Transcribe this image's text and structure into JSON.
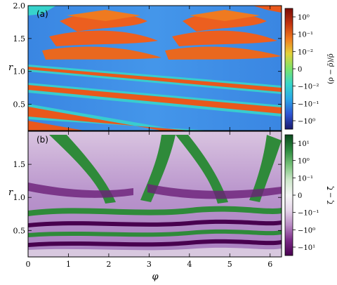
{
  "chart_data": [
    {
      "type": "heatmap",
      "panel_label": "(a)",
      "xlabel": "",
      "ylabel": "r",
      "xlim": [
        0,
        6.283
      ],
      "ylim": [
        0.1,
        2.0
      ],
      "xticks": [
        "0",
        "1",
        "2",
        "3",
        "4",
        "5",
        "6"
      ],
      "yticks": [
        "0.5",
        "1.0",
        "1.5",
        "2.0"
      ],
      "ytick_values": [
        0.5,
        1.0,
        1.5,
        2.0
      ],
      "colorbar": {
        "label": "(ρ − ρ̄)/ρ̄",
        "scale": "symlog",
        "tick_labels": [
          "10⁰",
          "10⁻¹",
          "10⁻²",
          "0",
          "−10⁻²",
          "−10⁻¹",
          "−10⁰"
        ],
        "colormap": [
          "#1a1a6e",
          "#2f55d4",
          "#2aa8e8",
          "#37d6c9",
          "#7be36a",
          "#e2d23a",
          "#f07a1f",
          "#c23410",
          "#7a0c08"
        ]
      },
      "background_color": "#3f8ee6",
      "feature_color": "#ee5a1c"
    },
    {
      "type": "heatmap",
      "panel_label": "(b)",
      "xlabel": "φ",
      "ylabel": "r",
      "xlim": [
        0,
        6.283
      ],
      "ylim": [
        0.1,
        2.0
      ],
      "xticks": [
        "0",
        "1",
        "2",
        "3",
        "4",
        "5",
        "6"
      ],
      "yticks": [
        "0.5",
        "1.0",
        "1.5"
      ],
      "ytick_values": [
        0.5,
        1.0,
        1.5
      ],
      "colorbar": {
        "label": "ζ − ζ̄",
        "scale": "symlog",
        "tick_labels": [
          "10¹",
          "10⁰",
          "10⁻¹",
          "0",
          "−10⁻¹",
          "−10⁰",
          "−10¹"
        ],
        "colormap": [
          "#48004f",
          "#7a2a86",
          "#b98ac4",
          "#e6d6ea",
          "#f7f7f7",
          "#cfe8cc",
          "#78c27a",
          "#2b8a3e",
          "#0b4a1e"
        ]
      },
      "background_color": "#c7a9d6",
      "feature_color": "#2f8a3a"
    }
  ]
}
